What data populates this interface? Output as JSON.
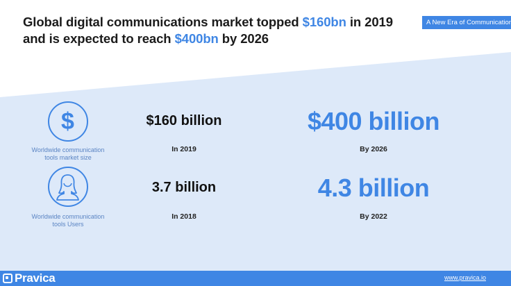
{
  "headline": {
    "line1_a": "Global digital communications market topped ",
    "line1_hl": "$160bn",
    "line1_b": " in 2019",
    "line2_a": "and is expected to reach ",
    "line2_hl": "$400bn",
    "line2_b": " by 2026"
  },
  "tag": "A New Era of Communication",
  "rows": [
    {
      "icon": "dollar-icon",
      "caption_line1": "Worldwide communication",
      "caption_line2": "tools market size",
      "current_value": "$160 billion",
      "current_year": "In 2019",
      "forecast_value": "$400 billion",
      "forecast_year": "By 2026"
    },
    {
      "icon": "user-icon",
      "caption_line1": "Worldwide communication",
      "caption_line2": "tools Users",
      "current_value": "3.7 billion",
      "current_year": "In 2018",
      "forecast_value": "4.3 billion",
      "forecast_year": "By 2022"
    }
  ],
  "footer": {
    "brand": "Pravica",
    "site": "www.pravica.io"
  },
  "colors": {
    "accent": "#3f86e4",
    "band": "#dde9f9"
  }
}
